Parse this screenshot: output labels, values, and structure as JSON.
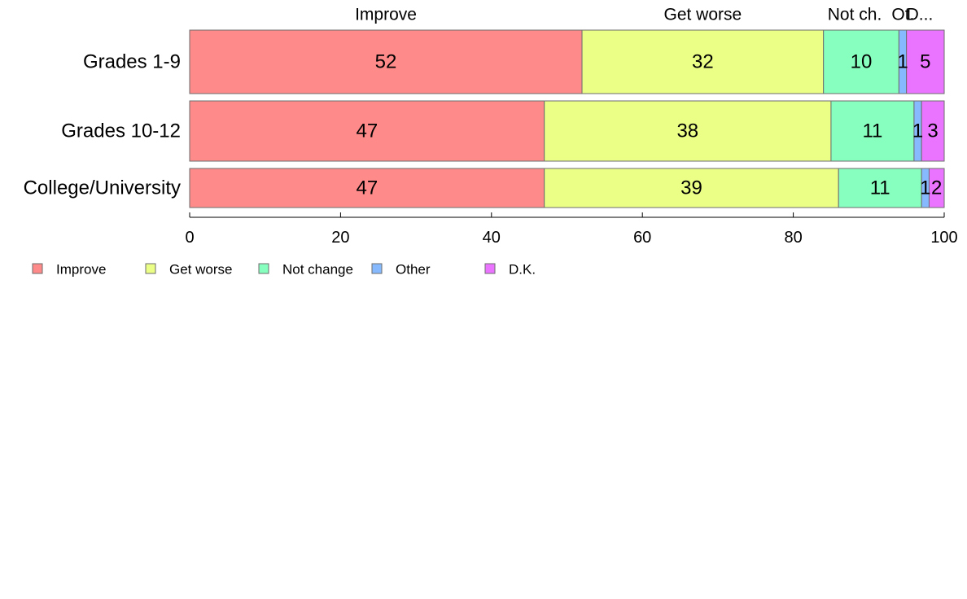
{
  "chart_data": {
    "type": "bar",
    "orientation": "horizontal",
    "stacked": true,
    "title": "",
    "xlabel": "",
    "ylabel": "",
    "xlim": [
      0,
      100
    ],
    "x_ticks": [
      0,
      20,
      40,
      60,
      80,
      100
    ],
    "grid": false,
    "legend_placement": "bottom-left",
    "categories": [
      "Grades 1-9",
      "Grades 10-12",
      "College/University"
    ],
    "series": [
      {
        "name": "Improve",
        "color": "#ff8a8a",
        "values": [
          52,
          47,
          47
        ],
        "value_labels": [
          "52",
          "47",
          "47"
        ]
      },
      {
        "name": "Get worse",
        "color": "#ebff87",
        "values": [
          32,
          38,
          39
        ],
        "value_labels": [
          "32",
          "38",
          "39"
        ]
      },
      {
        "name": "Not change",
        "color": "#87ffbe",
        "values": [
          10,
          11,
          11
        ],
        "value_labels": [
          "10",
          "11",
          "11"
        ]
      },
      {
        "name": "Other",
        "color": "#87b9ff",
        "values": [
          1,
          1,
          1
        ],
        "value_labels": [
          "1",
          "1",
          "1"
        ]
      },
      {
        "name": "D.K.",
        "color": "#ea74ff",
        "values": [
          5,
          3,
          2
        ],
        "value_labels": [
          "5",
          "3",
          "2"
        ]
      }
    ],
    "top_labels": [
      "Improve",
      "Get worse",
      "Not ch.",
      "Ot.",
      "D..."
    ]
  }
}
